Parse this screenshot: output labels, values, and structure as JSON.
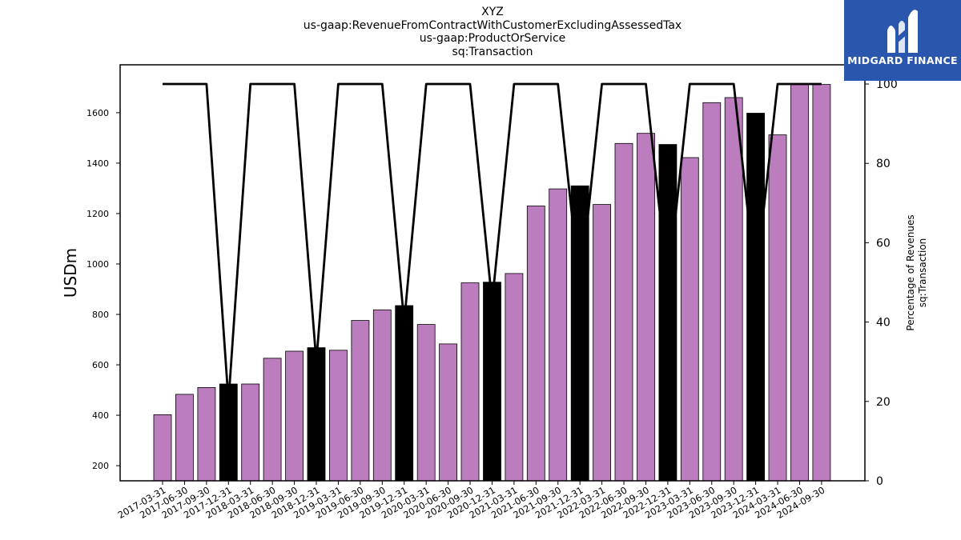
{
  "titles": {
    "line1": "XYZ",
    "line2": "us-gaap:RevenueFromContractWithCustomerExcludingAssessedTax",
    "line3": "us-gaap:ProductOrService",
    "line4": "sq:Transaction"
  },
  "logo": {
    "text": "MIDGARD FINANCE",
    "icon": "midgard-logo-icon",
    "color": "#2b56ad"
  },
  "colors": {
    "bar": "#bb7dbd",
    "bar_q4": "#000000",
    "line": "#000000"
  },
  "chart_data": {
    "type": "bar",
    "categories": [
      "2017-03-31",
      "2017-06-30",
      "2017-09-30",
      "2017-12-31",
      "2018-03-31",
      "2018-06-30",
      "2018-09-30",
      "2018-12-31",
      "2019-03-31",
      "2019-06-30",
      "2019-09-30",
      "2019-12-31",
      "2020-03-31",
      "2020-06-30",
      "2020-09-30",
      "2020-12-31",
      "2021-03-31",
      "2021-06-30",
      "2021-09-30",
      "2021-12-31",
      "2022-03-31",
      "2022-06-30",
      "2022-09-30",
      "2022-12-31",
      "2023-03-31",
      "2023-06-30",
      "2023-09-30",
      "2023-12-31",
      "2024-03-31",
      "2024-06-30",
      "2024-09-30"
    ],
    "values": [
      402,
      483,
      510,
      524,
      524,
      626,
      654,
      668,
      658,
      776,
      818,
      835,
      760,
      683,
      925,
      928,
      962,
      1230,
      1298,
      1310,
      1236,
      1478,
      1518,
      1474,
      1422,
      1640,
      1660,
      1598,
      1512,
      1712,
      1712
    ],
    "ylabel": "USDm",
    "ylim": [
      140,
      1790
    ],
    "yticks": [
      200,
      400,
      600,
      800,
      1000,
      1200,
      1400,
      1600
    ],
    "secondary_axis": {
      "label_lines": [
        "Percentage of Revenues",
        "sq:Transaction"
      ],
      "ylim": [
        0,
        100
      ],
      "yticks": [
        0,
        20,
        40,
        60,
        80,
        100
      ],
      "series": [
        100,
        100,
        100,
        20,
        100,
        100,
        100,
        30,
        100,
        100,
        100,
        40,
        100,
        100,
        100,
        45,
        100,
        100,
        100,
        48,
        100,
        100,
        100,
        49,
        100,
        100,
        100,
        50,
        100,
        100,
        100
      ]
    },
    "grid": false
  }
}
